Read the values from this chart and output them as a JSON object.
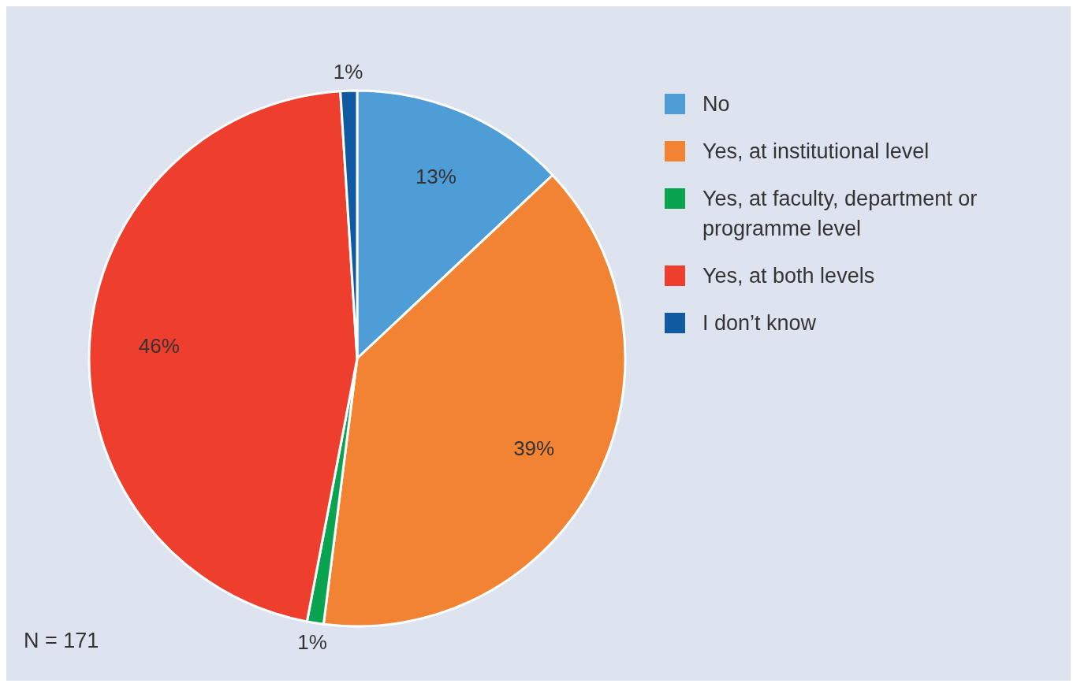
{
  "chart_data": {
    "type": "pie",
    "categories": [
      "No",
      "Yes, at institutional level",
      "Yes, at faculty, department or programme level",
      "Yes, at both levels",
      "I don’t know"
    ],
    "values": [
      13,
      39,
      1,
      46,
      1
    ],
    "colors": [
      "#4e9dd6",
      "#f28333",
      "#0aa450",
      "#ee3e2e",
      "#0f5aa0"
    ],
    "value_labels": [
      "13%",
      "39%",
      "1%",
      "46%",
      "1%"
    ],
    "legend": "right",
    "annotations": [
      "N = 171"
    ]
  }
}
